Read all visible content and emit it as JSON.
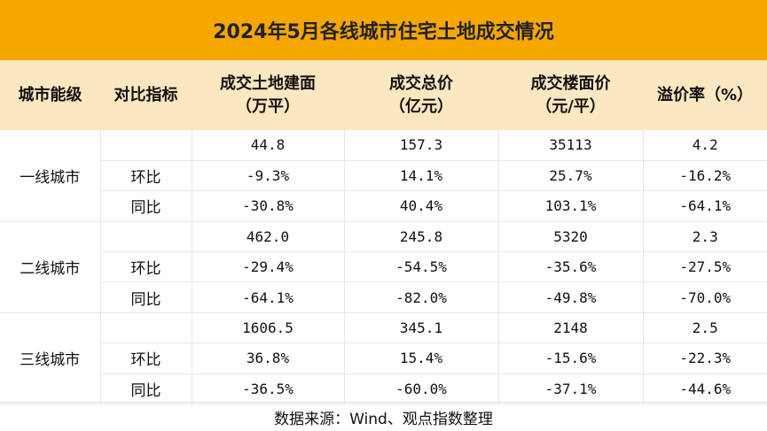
{
  "title": "2024年5月各线城市住宅土地成交情况",
  "headers": {
    "city_tier": "城市能级",
    "metric": "对比指标",
    "area_l1": "成交土地建面",
    "area_l2": "（万平）",
    "price_l1": "成交总价",
    "price_l2": "（亿元）",
    "floor_l1": "成交楼面价",
    "floor_l2": "（元/平）",
    "premium": "溢价率（%）"
  },
  "groups": [
    {
      "city": "一线城市",
      "rows": [
        {
          "metric": "",
          "area": "44.8",
          "total": "157.3",
          "floor": "35113",
          "premium": "4.2"
        },
        {
          "metric": "环比",
          "area": "-9.3%",
          "total": "14.1%",
          "floor": "25.7%",
          "premium": "-16.2%"
        },
        {
          "metric": "同比",
          "area": "-30.8%",
          "total": "40.4%",
          "floor": "103.1%",
          "premium": "-64.1%"
        }
      ]
    },
    {
      "city": "二线城市",
      "rows": [
        {
          "metric": "",
          "area": "462.0",
          "total": "245.8",
          "floor": "5320",
          "premium": "2.3"
        },
        {
          "metric": "环比",
          "area": "-29.4%",
          "total": "-54.5%",
          "floor": "-35.6%",
          "premium": "-27.5%"
        },
        {
          "metric": "同比",
          "area": "-64.1%",
          "total": "-82.0%",
          "floor": "-49.8%",
          "premium": "-70.0%"
        }
      ]
    },
    {
      "city": "三线城市",
      "rows": [
        {
          "metric": "",
          "area": "1606.5",
          "total": "345.1",
          "floor": "2148",
          "premium": "2.5"
        },
        {
          "metric": "环比",
          "area": "36.8%",
          "total": "15.4%",
          "floor": "-15.6%",
          "premium": "-22.3%"
        },
        {
          "metric": "同比",
          "area": "-36.5%",
          "total": "-60.0%",
          "floor": "-37.1%",
          "premium": "-44.6%"
        }
      ]
    }
  ],
  "footer": "数据来源：Wind、观点指数整理",
  "colors": {
    "title_bg": "#f5a700",
    "header_bg": "#fbe7c0"
  }
}
